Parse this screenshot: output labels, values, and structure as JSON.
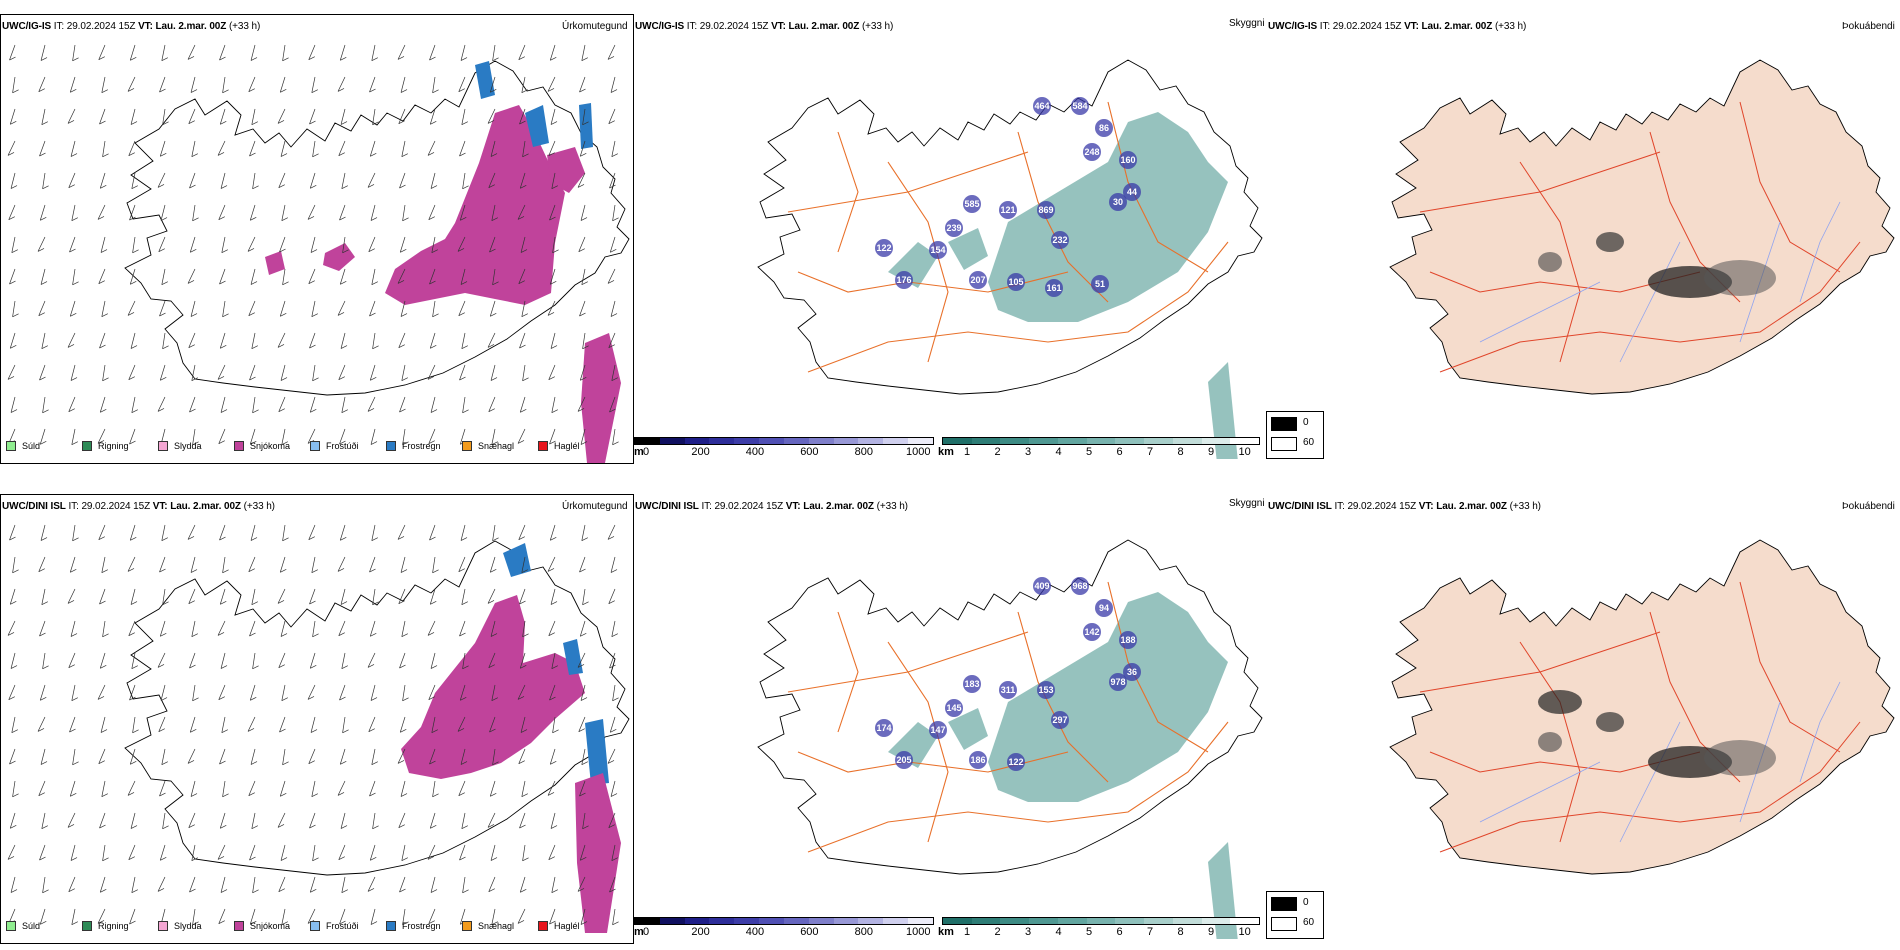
{
  "rows": [
    {
      "model": "UWC/IG-IS",
      "it_label": "IT:",
      "it": "29.02.2024 15Z",
      "vt_label": "VT:",
      "vt": "Lau. 2.mar. 00Z",
      "lead": "(+33 h)",
      "titles": {
        "precip": "Úrkomutegund",
        "visibility": "Skyggni",
        "fog": "Þokuábendi"
      },
      "cloud_labels": [
        "464",
        "584",
        "86",
        "248",
        "160",
        "44",
        "30",
        "585",
        "121",
        "869",
        "239",
        "232",
        "122",
        "154",
        "176",
        "207",
        "105",
        "161",
        "51"
      ]
    },
    {
      "model": "UWC/DINI ISL",
      "it_label": "IT:",
      "it": "29.02.2024 15Z",
      "vt_label": "VT:",
      "vt": "Lau. 2.mar. 00Z",
      "lead": "(+33 h)",
      "titles": {
        "precip": "Úrkomutegund",
        "visibility": "Skyggni",
        "fog": "Þokuábendi"
      },
      "cloud_labels": [
        "409",
        "968",
        "94",
        "142",
        "188",
        "36",
        "978",
        "183",
        "311",
        "153",
        "145",
        "297",
        "174",
        "147",
        "205",
        "186",
        "122"
      ]
    }
  ],
  "precip_legend": [
    {
      "label": "Súld",
      "color": "#90ee90"
    },
    {
      "label": "Rigning",
      "color": "#2e8b57"
    },
    {
      "label": "Slydda",
      "color": "#f4a6d3"
    },
    {
      "label": "Snjókoma",
      "color": "#c0439b"
    },
    {
      "label": "Frostúði",
      "color": "#87bdf0"
    },
    {
      "label": "Frostregn",
      "color": "#2a7bc4"
    },
    {
      "label": "Snæhagl",
      "color": "#f29b1d"
    },
    {
      "label": "Haglél",
      "color": "#e8151c"
    }
  ],
  "cloudbase_bar": {
    "unit": "m",
    "ticks": [
      "0",
      "200",
      "400",
      "600",
      "800",
      "1000"
    ],
    "colors": [
      "#000000",
      "#101060",
      "#1e1e88",
      "#2e2e9a",
      "#3d3da8",
      "#5050b4",
      "#6666bf",
      "#7f7fca",
      "#9898d6",
      "#b3b3e2",
      "#d0d0ee",
      "#ececf8"
    ]
  },
  "visibility_bar": {
    "unit": "km",
    "ticks": [
      "1",
      "2",
      "3",
      "4",
      "5",
      "6",
      "7",
      "8",
      "9",
      "10"
    ],
    "colors": [
      "#1f6f68",
      "#2e7d76",
      "#3d8b84",
      "#4f9892",
      "#62a6a0",
      "#78b3ae",
      "#8fc1bc",
      "#a8cfca",
      "#c2ddd9",
      "#dcecea",
      "#ffffff"
    ]
  },
  "fog_legend": [
    {
      "label": "0",
      "color": "#000000"
    },
    {
      "label": "60",
      "color": "#ffffff"
    }
  ],
  "colors": {
    "land": "#f5dccc",
    "roads": "#e8702a",
    "rivers": "#8fa3f0",
    "snow": "#c0439b",
    "frost_rain": "#2a7bc4",
    "teal": "#3f8f88"
  }
}
